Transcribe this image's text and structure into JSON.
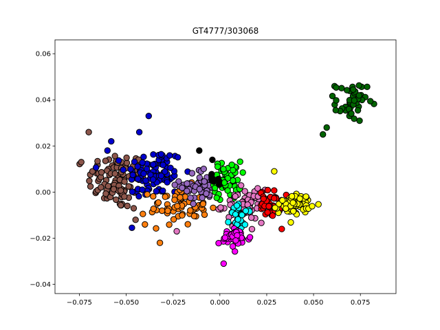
{
  "chart_data": {
    "type": "scatter",
    "title": "GT4777/303068",
    "xlabel": "",
    "ylabel": "",
    "xlim": [
      -0.088,
      0.094
    ],
    "ylim": [
      -0.044,
      0.066
    ],
    "xticks": [
      -0.075,
      -0.05,
      -0.025,
      0.0,
      0.025,
      0.05,
      0.075
    ],
    "xtick_labels": [
      "−0.075",
      "−0.050",
      "−0.025",
      "0.000",
      "0.025",
      "0.050",
      "0.075"
    ],
    "yticks": [
      -0.04,
      -0.02,
      0.0,
      0.02,
      0.04,
      0.06
    ],
    "ytick_labels": [
      "−0.04",
      "−0.02",
      "0.00",
      "0.02",
      "0.04",
      "0.06"
    ],
    "grid": false,
    "legend": "none",
    "marker_edge_color": "#000000",
    "clusters": [
      {
        "color": "#8c564b",
        "center": [
          -0.055,
          0.005
        ],
        "spread": [
          0.011,
          0.009
        ],
        "count": 95,
        "extra": [
          [
            -0.074,
            0.013
          ],
          [
            -0.07,
            0.026
          ],
          [
            -0.068,
            0.009
          ],
          [
            -0.045,
            -0.012
          ],
          [
            -0.046,
            -0.007
          ]
        ]
      },
      {
        "color": "#0000cd",
        "center": [
          -0.035,
          0.008
        ],
        "spread": [
          0.011,
          0.008
        ],
        "count": 100,
        "extra": [
          [
            -0.038,
            0.033
          ],
          [
            -0.043,
            0.026
          ],
          [
            -0.058,
            0.022
          ],
          [
            -0.06,
            0.018
          ]
        ]
      },
      {
        "color": "#ff7f0e",
        "center": [
          -0.022,
          -0.006
        ],
        "spread": [
          0.011,
          0.006
        ],
        "count": 70,
        "extra": [
          [
            -0.032,
            -0.022
          ],
          [
            -0.04,
            -0.014
          ]
        ]
      },
      {
        "color": "#9467bd",
        "center": [
          -0.01,
          0.003
        ],
        "spread": [
          0.008,
          0.005
        ],
        "count": 55,
        "extra": []
      },
      {
        "color": "#00ff00",
        "center": [
          0.004,
          0.005
        ],
        "spread": [
          0.005,
          0.006
        ],
        "count": 60,
        "extra": []
      },
      {
        "color": "#e377c2",
        "center": [
          0.012,
          -0.006
        ],
        "spread": [
          0.008,
          0.005
        ],
        "count": 65,
        "extra": [
          [
            -0.023,
            -0.017
          ]
        ]
      },
      {
        "color": "#00ffff",
        "center": [
          0.011,
          -0.011
        ],
        "spread": [
          0.004,
          0.004
        ],
        "count": 30,
        "extra": []
      },
      {
        "color": "#ff00ff",
        "center": [
          0.008,
          -0.02
        ],
        "spread": [
          0.006,
          0.003
        ],
        "count": 45,
        "extra": [
          [
            0.002,
            -0.031
          ]
        ]
      },
      {
        "color": "#ff0000",
        "center": [
          0.027,
          -0.005
        ],
        "spread": [
          0.004,
          0.004
        ],
        "count": 40,
        "extra": [
          [
            0.033,
            -0.016
          ]
        ]
      },
      {
        "color": "#ffff00",
        "center": [
          0.04,
          -0.005
        ],
        "spread": [
          0.006,
          0.003
        ],
        "count": 75,
        "extra": [
          [
            0.029,
            0.009
          ]
        ]
      },
      {
        "color": "#006400",
        "center": [
          0.07,
          0.039
        ],
        "spread": [
          0.006,
          0.006
        ],
        "count": 45,
        "extra": [
          [
            0.055,
            0.025
          ],
          [
            0.057,
            0.028
          ]
        ]
      },
      {
        "color": "#000000",
        "center": [
          -0.004,
          0.004
        ],
        "spread": [
          0.004,
          0.004
        ],
        "count": 8,
        "extra": [
          [
            -0.011,
            0.018
          ],
          [
            -0.004,
            0.014
          ]
        ]
      }
    ]
  }
}
